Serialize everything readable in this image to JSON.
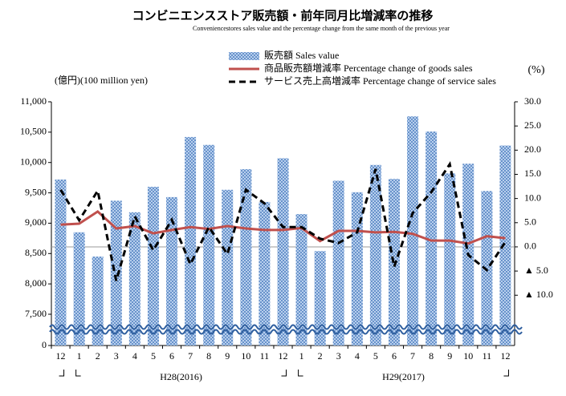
{
  "chart_data": {
    "type": "bar_line",
    "title": "コンビニエンスストア販売額・前年同月比増減率の推移",
    "subtitle": "Conveniencestores sales value and the percentage change from the same month of the previous year",
    "y_label": "(億円)(100 million yen)",
    "y2_label": "(%)",
    "categories": [
      "12",
      "1",
      "2",
      "3",
      "4",
      "5",
      "6",
      "7",
      "8",
      "9",
      "10",
      "11",
      "12",
      "1",
      "2",
      "3",
      "4",
      "5",
      "6",
      "7",
      "8",
      "9",
      "10",
      "11",
      "12"
    ],
    "x_groups": [
      "H28(2016)",
      "H29(2017)"
    ],
    "y_break": true,
    "ylim": [
      0,
      11000
    ],
    "yticks": [
      0,
      {
        "value": 7500,
        "label": "7,500"
      },
      {
        "value": 8000,
        "label": "8,000"
      },
      {
        "value": 8500,
        "label": "8,500"
      },
      {
        "value": 9000,
        "label": "9,000"
      },
      {
        "value": 9500,
        "label": "9,500"
      },
      {
        "value": 10000,
        "label": "10,000"
      },
      {
        "value": 10500,
        "label": "10,500"
      },
      {
        "value": 11000,
        "label": "11,000"
      }
    ],
    "y2lim": [
      -20.4,
      30
    ],
    "y2ticks": [
      {
        "value": 30,
        "label": "30.0"
      },
      {
        "value": 25,
        "label": "25.0"
      },
      {
        "value": 20,
        "label": "20.0"
      },
      {
        "value": 15,
        "label": "15.0"
      },
      {
        "value": 10,
        "label": "10.0"
      },
      {
        "value": 5,
        "label": "5.0"
      },
      {
        "value": 0,
        "label": "0.0"
      },
      {
        "value": -5,
        "label": "▲ 5.0"
      },
      {
        "value": -10,
        "label": "▲ 10.0"
      }
    ],
    "series": [
      {
        "name": "販売額 Sales value",
        "kind": "bar",
        "color": "#7ea6d8",
        "values": [
          9720,
          8850,
          8450,
          9370,
          9180,
          9600,
          9430,
          10420,
          10290,
          9550,
          9890,
          9350,
          10070,
          9150,
          8540,
          9700,
          9510,
          9960,
          9730,
          10760,
          10510,
          9820,
          9980,
          9530,
          10280
        ]
      },
      {
        "name": "商品販売額増減率 Percentage change of goods sales",
        "kind": "line",
        "axis": "y2",
        "color": "#c0504d",
        "values": [
          4.6,
          4.8,
          7.3,
          3.8,
          4.3,
          2.8,
          3.5,
          4.1,
          3.7,
          4.3,
          3.8,
          3.5,
          3.5,
          3.9,
          1.2,
          3.3,
          3.3,
          3.0,
          3.1,
          2.7,
          1.3,
          1.3,
          0.7,
          2.2,
          1.8
        ]
      },
      {
        "name": "サービス売上高増減率 Percentage change of service sales",
        "kind": "dashed",
        "axis": "y2",
        "color": "#000000",
        "values": [
          11.8,
          5.5,
          11.6,
          -7.0,
          6.3,
          -0.7,
          5.6,
          -3.6,
          4.1,
          -1.5,
          11.8,
          9.0,
          4.1,
          4.1,
          1.7,
          0.8,
          3.0,
          16.1,
          -4.1,
          7.0,
          11.3,
          17.1,
          -1.7,
          -4.8,
          1.0
        ]
      }
    ]
  }
}
